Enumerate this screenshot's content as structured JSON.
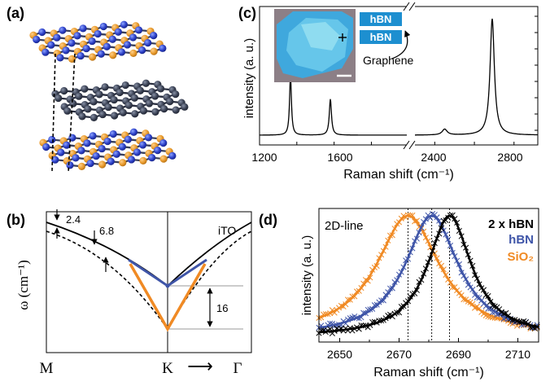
{
  "panels": {
    "a": {
      "label": "(a)"
    },
    "b": {
      "label": "(b)",
      "branch_label": "iTO",
      "annot_top": "2.4",
      "annot_mid": "6.8",
      "annot_gap": "16",
      "ylabel": "ω (cm⁻¹)",
      "x_left": "M",
      "x_mid": "K",
      "x_arrow": "⟶",
      "x_right": "Γ"
    },
    "c": {
      "label": "(c)",
      "inset_box_top": "hBN",
      "inset_box_bottom": "hBN",
      "inset_pointer_label": "Graphene",
      "ylabel": "intensity (a. u.)",
      "xlabel": "Raman shift (cm⁻¹)",
      "xticks_left": [
        "1200",
        "1600"
      ],
      "xticks_right": [
        "2400",
        "2800"
      ]
    },
    "d": {
      "label": "(d)",
      "line_label": "2D-line",
      "legend": [
        {
          "text": "2 x hBN",
          "color": "#000000"
        },
        {
          "text": "hBN",
          "color": "#3f55a8"
        },
        {
          "text": "SiO₂",
          "color": "#f08a24"
        }
      ],
      "ylabel": "intensity (a. u.)",
      "xlabel": "Raman shift (cm⁻¹)",
      "xticks": [
        "2650",
        "2670",
        "2690",
        "2710"
      ]
    }
  },
  "chart_data": [
    {
      "type": "line",
      "panel": "c",
      "xlabel": "Raman shift (cm⁻¹)",
      "ylabel": "intensity (a. u.)",
      "xlim_segments": [
        [
          1200,
          2000
        ],
        [
          2100,
          2900
        ]
      ],
      "x_break": true,
      "peaks": [
        {
          "x": 1366,
          "height": 0.52,
          "width": 12
        },
        {
          "x": 1580,
          "height": 0.31,
          "width": 14
        },
        {
          "x": 2450,
          "height": 0.05,
          "width": 30
        },
        {
          "x": 2690,
          "height": 1.0,
          "width": 26
        }
      ]
    },
    {
      "type": "scatter",
      "panel": "d",
      "xlabel": "Raman shift (cm⁻¹)",
      "ylabel": "intensity (a. u.)",
      "xlim": [
        2643,
        2717
      ],
      "xticks": [
        2650,
        2670,
        2690,
        2710
      ],
      "series": [
        {
          "name": "SiO₂",
          "color": "#f08a24",
          "center": 2673,
          "fwhm": 26
        },
        {
          "name": "hBN",
          "color": "#3f55a8",
          "center": 2681,
          "fwhm": 22
        },
        {
          "name": "2 x hBN",
          "color": "#000000",
          "center": 2687,
          "fwhm": 18
        }
      ]
    }
  ]
}
